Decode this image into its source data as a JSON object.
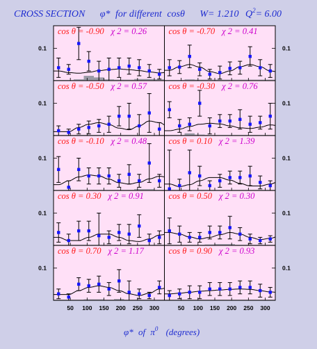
{
  "title": {
    "main": "CROSS SECTION",
    "phi": "φ*",
    "for_text": "for different",
    "cos_text": "cosθ",
    "w_text": "W= 1.210",
    "q_text": "Q",
    "q_sup": "2",
    "q_val": "= 6.00"
  },
  "xaxis": {
    "phi": "φ*",
    "of": "of",
    "pi": "π",
    "pi_sup": "0",
    "units": "(degrees)"
  },
  "chart_data": {
    "type": "scatter",
    "x": [
      15,
      45,
      75,
      105,
      135,
      165,
      195,
      225,
      255,
      285,
      315,
      345
    ],
    "xticks": [
      50,
      100,
      150,
      200,
      250,
      300
    ],
    "xlim": [
      0,
      330
    ],
    "ylim": [
      0,
      0.17
    ],
    "yticks": [
      "0.1"
    ],
    "panels": [
      {
        "cos": "cos θ = -0.90",
        "chi": "χ 2 = 0.26",
        "y": [
          0.04,
          0.035,
          0.115,
          0.06,
          0.03,
          0.035,
          0.04,
          0.045,
          0.04,
          0.03,
          0.02,
          0.03
        ],
        "err": [
          0.03,
          0.015,
          0.05,
          0.03,
          0.03,
          0.035,
          0.03,
          0.025,
          0.025,
          0.02,
          0.015,
          0.02
        ],
        "sys": [
          0.002,
          0.002,
          0.004,
          0.015,
          0.01,
          0.004,
          0.003,
          0.003,
          0.005,
          0.005,
          0.004,
          0.004
        ],
        "fit": [
          0.03,
          0.025,
          0.023,
          0.026,
          0.031,
          0.034,
          0.036,
          0.034,
          0.031,
          0.027,
          0.024,
          0.026
        ]
      },
      {
        "cos": "cos θ = -0.70",
        "chi": "χ 2 = 0.41",
        "y": [
          0.04,
          0.042,
          0.075,
          0.035,
          0.02,
          0.025,
          0.038,
          0.04,
          0.075,
          0.04,
          0.03,
          0.04
        ],
        "err": [
          0.025,
          0.02,
          0.035,
          0.02,
          0.015,
          0.02,
          0.02,
          0.02,
          0.03,
          0.025,
          0.02,
          0.02
        ],
        "sys": [
          0.002,
          0.002,
          0.004,
          0.003,
          0.003,
          0.003,
          0.003,
          0.003,
          0.003,
          0.003,
          0.003,
          0.003
        ],
        "fit": [
          0.032,
          0.043,
          0.05,
          0.042,
          0.028,
          0.022,
          0.03,
          0.043,
          0.05,
          0.043,
          0.03,
          0.026
        ]
      },
      {
        "cos": "cos θ = -0.50",
        "chi": "χ 2 = 0.57",
        "y": [
          0.015,
          0.01,
          0.02,
          0.025,
          0.03,
          0.035,
          0.06,
          0.06,
          0.03,
          0.07,
          0.02,
          0.025
        ],
        "err": [
          0.015,
          0.01,
          0.015,
          0.02,
          0.02,
          0.025,
          0.03,
          0.04,
          0.035,
          0.06,
          0.02,
          0.02
        ],
        "sys": [
          0.002,
          0.002,
          0.002,
          0.002,
          0.002,
          0.002,
          0.002,
          0.002,
          0.002,
          0.002,
          0.002,
          0.002
        ],
        "fit": [
          0.012,
          0.012,
          0.025,
          0.035,
          0.04,
          0.034,
          0.023,
          0.018,
          0.03,
          0.045,
          0.04,
          0.025
        ]
      },
      {
        "cos": "cos θ = -0.30",
        "chi": "χ 2 = 0.76",
        "y": [
          0.08,
          0.03,
          0.035,
          0.1,
          0.03,
          0.045,
          0.045,
          0.05,
          0.035,
          0.04,
          0.06,
          0.035
        ],
        "err": [
          0.025,
          0.02,
          0.02,
          0.04,
          0.025,
          0.02,
          0.02,
          0.03,
          0.025,
          0.02,
          0.04,
          0.025
        ],
        "sys": [
          0.002,
          0.002,
          0.007,
          0.003,
          0.002,
          0.002,
          0.002,
          0.002,
          0.002,
          0.002,
          0.002,
          0.002
        ],
        "fit": [
          0.015,
          0.02,
          0.028,
          0.035,
          0.038,
          0.036,
          0.03,
          0.024,
          0.022,
          0.026,
          0.033,
          0.03
        ]
      },
      {
        "cos": "cos θ = -0.10",
        "chi": "χ 2 = 0.48",
        "y": [
          0.065,
          0.01,
          0.065,
          0.045,
          0.045,
          0.045,
          0.03,
          0.05,
          0.03,
          0.085,
          0.03,
          0.055
        ],
        "err": [
          0.04,
          0.02,
          0.035,
          0.025,
          0.025,
          0.025,
          0.02,
          0.03,
          0.02,
          0.06,
          0.02,
          0.035
        ],
        "sys": [
          0.002,
          0.002,
          0.002,
          0.002,
          0.002,
          0.002,
          0.002,
          0.002,
          0.004,
          0.004,
          0.002,
          0.002
        ],
        "fit": [
          0.018,
          0.03,
          0.042,
          0.048,
          0.045,
          0.035,
          0.024,
          0.02,
          0.025,
          0.036,
          0.044,
          0.04
        ]
      },
      {
        "cos": "cos θ = 0.10",
        "chi": "χ 2 = 1.39",
        "y": [
          0.005,
          0.015,
          0.055,
          0.045,
          0.015,
          0.03,
          0.04,
          0.04,
          0.045,
          0.025,
          0.015,
          0.015
        ],
        "err": [
          0.12,
          0.02,
          0.07,
          0.03,
          0.015,
          0.02,
          0.02,
          0.02,
          0.03,
          0.02,
          0.015,
          0.015
        ],
        "sys": [
          0.002,
          0.002,
          0.002,
          0.002,
          0.002,
          0.002,
          0.002,
          0.002,
          0.002,
          0.002,
          0.002,
          0.002
        ],
        "fit": [
          0.02,
          0.012,
          0.018,
          0.03,
          0.04,
          0.04,
          0.032,
          0.022,
          0.014,
          0.014,
          0.02,
          0.03
        ]
      },
      {
        "cos": "cos θ = 0.30",
        "chi": "χ 2 = 0.91",
        "y": [
          0.04,
          0.015,
          0.045,
          0.045,
          0.03,
          0.025,
          0.04,
          0.035,
          0.06,
          0.015,
          0.025,
          0.04
        ],
        "err": [
          0.03,
          0.02,
          0.03,
          0.03,
          0.07,
          0.02,
          0.025,
          0.03,
          0.035,
          0.02,
          0.02,
          0.025
        ],
        "sys": [
          0.002,
          0.002,
          0.002,
          0.002,
          0.002,
          0.002,
          0.002,
          0.002,
          0.002,
          0.002,
          0.002,
          0.002
        ],
        "fit": [
          0.025,
          0.015,
          0.015,
          0.025,
          0.035,
          0.035,
          0.025,
          0.015,
          0.012,
          0.02,
          0.032,
          0.036
        ]
      },
      {
        "cos": "cos θ = 0.50",
        "chi": "χ 2 = 0.30",
        "y": [
          0.045,
          0.035,
          0.025,
          0.025,
          0.04,
          0.04,
          0.055,
          0.035,
          0.02,
          0.015,
          0.02,
          0.04
        ],
        "err": [
          0.04,
          0.025,
          0.015,
          0.015,
          0.02,
          0.02,
          0.035,
          0.02,
          0.015,
          0.01,
          0.01,
          0.02
        ],
        "sys": [
          0.002,
          0.002,
          0.002,
          0.002,
          0.003,
          0.004,
          0.004,
          0.002,
          0.002,
          0.002,
          0.002,
          0.002
        ],
        "fit": [
          0.04,
          0.035,
          0.026,
          0.02,
          0.025,
          0.033,
          0.04,
          0.035,
          0.025,
          0.018,
          0.022,
          0.03
        ]
      },
      {
        "cos": "cos θ = 0.70",
        "chi": "χ 2 = 1.17",
        "y": [
          0.02,
          0.01,
          0.05,
          0.045,
          0.05,
          0.035,
          0.06,
          0.025,
          0.02,
          0.015,
          0.04,
          0.045
        ],
        "err": [
          0.015,
          0.01,
          0.02,
          0.02,
          0.025,
          0.02,
          0.035,
          0.035,
          0.015,
          0.01,
          0.02,
          0.02
        ],
        "sys": [
          0.002,
          0.002,
          0.002,
          0.003,
          0.003,
          0.002,
          0.004,
          0.002,
          0.002,
          0.002,
          0.002,
          0.002
        ],
        "fit": [
          0.018,
          0.018,
          0.03,
          0.04,
          0.045,
          0.04,
          0.03,
          0.02,
          0.015,
          0.022,
          0.035,
          0.04
        ]
      },
      {
        "cos": "cos θ = 0.90",
        "chi": "χ 2 = 0.93",
        "y": [
          0.015,
          0.02,
          0.025,
          0.025,
          0.035,
          0.035,
          0.035,
          0.04,
          0.04,
          0.03,
          0.025,
          0.025
        ],
        "err": [
          0.015,
          0.015,
          0.02,
          0.02,
          0.02,
          0.02,
          0.02,
          0.02,
          0.02,
          0.02,
          0.015,
          0.015
        ],
        "sys": [
          0.002,
          0.002,
          0.002,
          0.002,
          0.002,
          0.002,
          0.002,
          0.002,
          0.002,
          0.002,
          0.002,
          0.002
        ],
        "fit": [
          0.02,
          0.022,
          0.025,
          0.028,
          0.03,
          0.032,
          0.034,
          0.035,
          0.034,
          0.03,
          0.026,
          0.024
        ]
      }
    ]
  }
}
